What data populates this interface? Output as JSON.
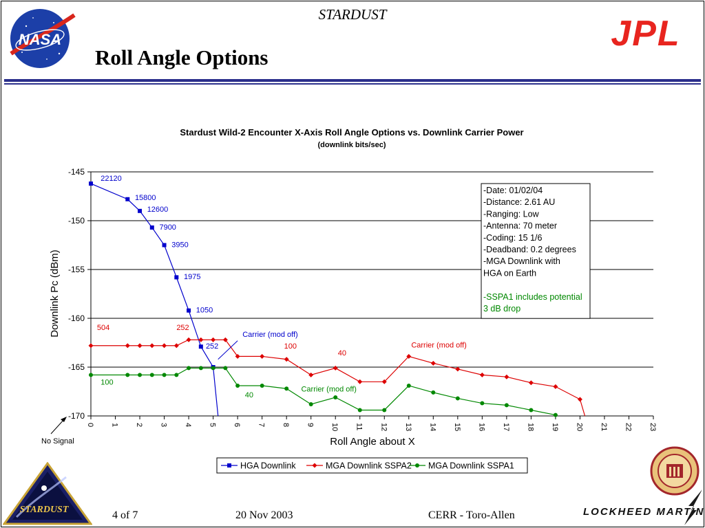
{
  "slide": {
    "header": "STARDUST",
    "title": "Roll Angle Options",
    "footer_page": "4 of 7",
    "footer_date": "20 Nov 2003",
    "footer_right": "CERR - Toro-Allen",
    "nasa_logo_text": "NASA",
    "jpl_logo_text": "JPL",
    "stardust_logo_text": "STARDUST",
    "lockheed_text": "LOCKHEED MARTIN",
    "colors": {
      "rule": "#2b2f8c",
      "jpl": "#e8251f",
      "nasa_blue": "#1c3fa8"
    }
  },
  "chart_data": {
    "type": "line",
    "title": "Stardust Wild-2 Encounter X-Axis Roll Angle Options vs. Downlink Carrier Power",
    "subtitle": "(downlink bits/sec)",
    "xlabel": "Roll Angle about X",
    "ylabel": "Downlink Pc (dBm)",
    "xlim": [
      0,
      23
    ],
    "ylim": [
      -170,
      -145
    ],
    "xticks": [
      "0",
      "1",
      "2",
      "3",
      "4",
      "5",
      "6",
      "7",
      "8",
      "9",
      "10",
      "11",
      "12",
      "13",
      "14",
      "15",
      "16",
      "17",
      "18",
      "19",
      "20",
      "21",
      "22",
      "23"
    ],
    "yticks": [
      "-145",
      "-150",
      "-155",
      "-160",
      "-165",
      "-170"
    ],
    "grid": "horizontal",
    "legend_position": "bottom",
    "series": [
      {
        "name": "HGA Downlink",
        "color": "#0000cc",
        "marker": "square",
        "x": [
          0,
          1.5,
          2,
          2.5,
          3,
          3.5,
          4,
          4.5,
          5,
          5.2
        ],
        "y": [
          -146.2,
          -147.8,
          -149.0,
          -150.7,
          -152.5,
          -155.8,
          -159.2,
          -162.9,
          -165.0,
          -170.0
        ]
      },
      {
        "name": "MGA Downlink SSPA2",
        "color": "#dd0000",
        "marker": "diamond",
        "x": [
          0,
          1.5,
          2,
          2.5,
          3,
          3.5,
          4,
          4.5,
          5,
          5.5,
          6,
          7,
          8,
          9,
          10,
          11,
          12,
          13,
          14,
          15,
          16,
          17,
          18,
          19,
          20,
          20.2
        ],
        "y": [
          -162.8,
          -162.8,
          -162.8,
          -162.8,
          -162.8,
          -162.8,
          -162.2,
          -162.2,
          -162.2,
          -162.2,
          -163.9,
          -163.9,
          -164.2,
          -165.8,
          -165.1,
          -166.5,
          -166.5,
          -163.9,
          -164.6,
          -165.2,
          -165.8,
          -166.0,
          -166.6,
          -167.0,
          -168.3,
          -170.0
        ]
      },
      {
        "name": "MGA Downlink SSPA1",
        "color": "#008800",
        "marker": "circle",
        "x": [
          0,
          1.5,
          2,
          2.5,
          3,
          3.5,
          4,
          4.5,
          5,
          5.5,
          6,
          7,
          8,
          9,
          10,
          11,
          12,
          13,
          14,
          15,
          16,
          17,
          18,
          19
        ],
        "y": [
          -165.8,
          -165.8,
          -165.8,
          -165.8,
          -165.8,
          -165.8,
          -165.1,
          -165.1,
          -165.1,
          -165.1,
          -166.9,
          -166.9,
          -167.2,
          -168.8,
          -168.1,
          -169.4,
          -169.4,
          -166.9,
          -167.6,
          -168.2,
          -168.7,
          -168.9,
          -169.4,
          -169.9
        ]
      }
    ],
    "annotations": [
      {
        "text": "22120",
        "x": 0.4,
        "y": -145.9,
        "color": "#0000cc"
      },
      {
        "text": "15800",
        "x": 1.8,
        "y": -147.9,
        "color": "#0000cc"
      },
      {
        "text": "12600",
        "x": 2.3,
        "y": -149.1,
        "color": "#0000cc"
      },
      {
        "text": "7900",
        "x": 2.8,
        "y": -150.9,
        "color": "#0000cc"
      },
      {
        "text": "3950",
        "x": 3.3,
        "y": -152.7,
        "color": "#0000cc"
      },
      {
        "text": "1975",
        "x": 3.8,
        "y": -156.0,
        "color": "#0000cc"
      },
      {
        "text": "1050",
        "x": 4.3,
        "y": -159.4,
        "color": "#0000cc"
      },
      {
        "text": "252",
        "x": 4.7,
        "y": -163.1,
        "color": "#0000cc"
      },
      {
        "text": "Carrier (mod off)",
        "x": 6.2,
        "y": -161.9,
        "color": "#0000cc"
      },
      {
        "text": "504",
        "x": 0.25,
        "y": -161.2,
        "color": "#dd0000"
      },
      {
        "text": "252",
        "x": 3.5,
        "y": -161.2,
        "color": "#dd0000"
      },
      {
        "text": "100",
        "x": 7.9,
        "y": -163.1,
        "color": "#dd0000"
      },
      {
        "text": "40",
        "x": 10.1,
        "y": -163.8,
        "color": "#dd0000"
      },
      {
        "text": "Carrier (mod off)",
        "x": 13.1,
        "y": -163.0,
        "color": "#dd0000"
      },
      {
        "text": "100",
        "x": 0.4,
        "y": -166.8,
        "color": "#008800"
      },
      {
        "text": "40",
        "x": 6.3,
        "y": -168.1,
        "color": "#008800"
      },
      {
        "text": "Carrier (mod off)",
        "x": 8.6,
        "y": -167.5,
        "color": "#008800"
      }
    ],
    "info_box": {
      "lines": [
        {
          "text": "-Date: 01/02/04",
          "color": "#000000"
        },
        {
          "text": "-Distance: 2.61 AU",
          "color": "#000000"
        },
        {
          "text": "-Ranging: Low",
          "color": "#000000"
        },
        {
          "text": "-Antenna: 70 meter",
          "color": "#000000"
        },
        {
          "text": "-Coding: 15 1/6",
          "color": "#000000"
        },
        {
          "text": "-Deadband: 0.2 degrees",
          "color": "#000000"
        },
        {
          "text": "-MGA Downlink with",
          "color": "#000000"
        },
        {
          "text": "HGA on Earth",
          "color": "#000000"
        },
        {
          "text": "",
          "color": "#000000"
        },
        {
          "text": "-SSPA1 includes potential",
          "color": "#008800"
        },
        {
          "text": "3 dB drop",
          "color": "#008800"
        }
      ]
    },
    "no_signal_label": "No Signal"
  }
}
